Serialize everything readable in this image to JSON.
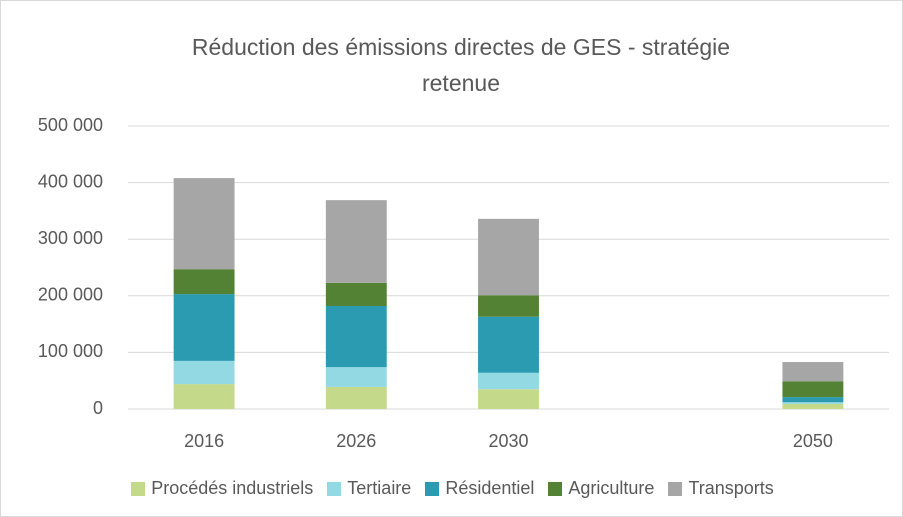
{
  "chart_data": {
    "type": "stacked_bar",
    "title": "Réduction des émissions directes de GES - stratégie retenue",
    "categories": [
      "2016",
      "2026",
      "2030",
      null,
      "2050"
    ],
    "series": [
      {
        "name": "Procédés industriels",
        "color": "#c5d98a",
        "values": [
          44000,
          39000,
          35000,
          null,
          9000
        ]
      },
      {
        "name": "Tertiaire",
        "color": "#92d9e4",
        "values": [
          41000,
          35000,
          29000,
          null,
          3000
        ]
      },
      {
        "name": "Résidentiel",
        "color": "#2a9bb0",
        "values": [
          118000,
          108000,
          99000,
          null,
          9000
        ]
      },
      {
        "name": "Agriculture",
        "color": "#548235",
        "values": [
          44000,
          41000,
          38000,
          null,
          28000
        ]
      },
      {
        "name": "Transports",
        "color": "#a6a6a6",
        "values": [
          161000,
          146000,
          135000,
          null,
          34000
        ]
      }
    ],
    "ylim": [
      0,
      500000
    ],
    "yticks": [
      0,
      {
        "value": 100000,
        "label": "100 000"
      },
      {
        "value": 200000,
        "label": "200 000"
      },
      {
        "value": 300000,
        "label": "300 000"
      },
      {
        "value": 400000,
        "label": "400 000"
      },
      {
        "value": 500000,
        "label": "500 000"
      }
    ],
    "grid": true,
    "legend": "bottom"
  }
}
